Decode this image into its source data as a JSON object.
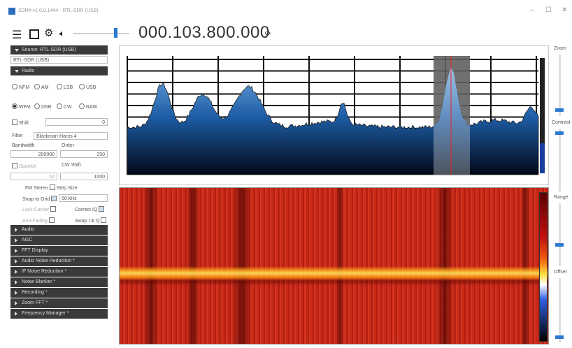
{
  "window": {
    "title": "SDR# v1.0.0.1444 - RTL-SDR (USB)"
  },
  "toolbar": {
    "frequency": "000.103.800.000"
  },
  "source": {
    "header": "Source: RTL-SDR (USB)",
    "device": "RTL-SDR (USB)"
  },
  "radio": {
    "header": "Radio",
    "modes": [
      "NFM",
      "AM",
      "LSB",
      "USB",
      "WFM",
      "DSB",
      "CW",
      "RAW"
    ],
    "shift_label": "Shift",
    "shift_value": "0",
    "filter_label": "Filter",
    "filter_value": "Blackman-Harris 4",
    "bandwidth_label": "Bandwidth",
    "order_label": "Order",
    "bandwidth_value": "200000",
    "order_value": "250",
    "squelch_label": "Squelch",
    "cw_shift_label": "CW Shift",
    "squelch_value": "50",
    "cw_shift_value": "1000",
    "fm_stereo": "FM Stereo",
    "step_size": "Step Size",
    "snap_to_grid": "Snap to Grid",
    "snap_value": "50 kHz",
    "lock_carrier": "Lock Carrier",
    "correct_iq": "Correct IQ",
    "anti_fading": "Anti-Fading",
    "swap_iq": "Swap I & Q"
  },
  "sections": [
    "Audio",
    "AGC",
    "FFT Display",
    "Audio Noise Reduction *",
    "IF Noise Reduction *",
    "Noise Blanker *",
    "Recording *",
    "Zoom FFT *",
    "Frequency Manager *"
  ],
  "side": {
    "zoom": "Zoom",
    "contrast": "Contrast",
    "range": "Range",
    "offset": "Offset"
  }
}
